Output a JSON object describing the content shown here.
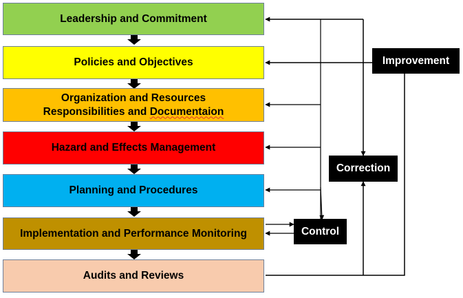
{
  "steps": [
    {
      "id": "leadership",
      "lines": [
        "Leadership and Commitment"
      ],
      "color": "#92d050"
    },
    {
      "id": "policies",
      "lines": [
        "Policies and Objectives"
      ],
      "color": "#ffff00"
    },
    {
      "id": "organization",
      "lines": [
        "Organization and Resources",
        "Responsibilities and Documentaion"
      ],
      "color": "#ffc000"
    },
    {
      "id": "hazard",
      "lines": [
        "Hazard and Effects Management"
      ],
      "color": "#ff0000"
    },
    {
      "id": "planning",
      "lines": [
        "Planning and Procedures"
      ],
      "color": "#00b0f0"
    },
    {
      "id": "implementation",
      "lines": [
        "Implementation and Performance Monitoring"
      ],
      "color": "#bf9000"
    },
    {
      "id": "audits",
      "lines": [
        "Audits and Reviews"
      ],
      "color": "#f8cbad"
    }
  ],
  "feedback": {
    "improvement": "Improvement",
    "correction": "Correction",
    "control": "Control"
  }
}
